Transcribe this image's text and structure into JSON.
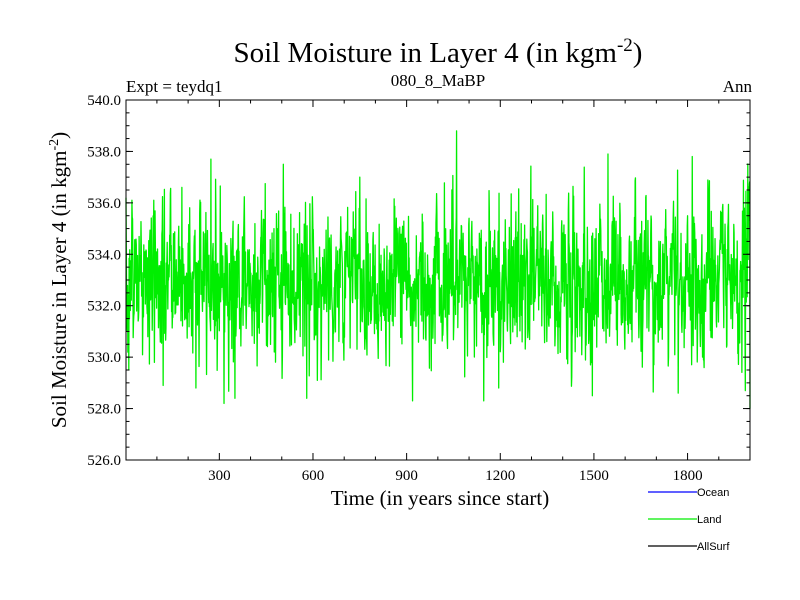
{
  "chart_data": {
    "type": "line",
    "title": "Soil Moisture in Layer 4 (in kgm",
    "title_superscript": "-2",
    "title_suffix": ")",
    "subtitle_left": "Expt = teydq1",
    "subtitle_center": "080_8_MaBP",
    "subtitle_right": "Ann",
    "xlabel": "Time (in years since start)",
    "ylabel": "Soil Moisture in Layer 4 (in kgm",
    "ylabel_superscript": "-2",
    "ylabel_suffix": ")",
    "xlim": [
      1,
      2000
    ],
    "ylim": [
      526.0,
      540.0
    ],
    "xticks": [
      300,
      600,
      900,
      1200,
      1500,
      1800
    ],
    "xtick_labels": [
      "300",
      "600",
      "900",
      "1200",
      "1500",
      "1800"
    ],
    "yticks": [
      526.0,
      528.0,
      530.0,
      532.0,
      534.0,
      536.0,
      538.0,
      540.0
    ],
    "ytick_labels": [
      "526.0",
      "528.0",
      "530.0",
      "532.0",
      "534.0",
      "536.0",
      "538.0",
      "540.0"
    ],
    "grid": false,
    "series": [
      {
        "name": "Land",
        "color": "#00ee00",
        "n_points": 2000,
        "mean": 533.0,
        "std": 1.5,
        "min": 528.0,
        "max": 538.8,
        "anchors": [
          {
            "x": 1,
            "y": 536.2
          },
          {
            "x": 10,
            "y": 529.5
          },
          {
            "x": 20,
            "y": 536.1
          },
          {
            "x": 120,
            "y": 528.9
          },
          {
            "x": 180,
            "y": 536.6
          },
          {
            "x": 225,
            "y": 528.8
          },
          {
            "x": 273,
            "y": 537.7
          },
          {
            "x": 315,
            "y": 528.2
          },
          {
            "x": 350,
            "y": 528.4
          },
          {
            "x": 505,
            "y": 537.5
          },
          {
            "x": 580,
            "y": 528.4
          },
          {
            "x": 750,
            "y": 537.0
          },
          {
            "x": 1060,
            "y": 538.8
          },
          {
            "x": 1195,
            "y": 528.8
          },
          {
            "x": 1495,
            "y": 528.5
          },
          {
            "x": 1545,
            "y": 537.9
          },
          {
            "x": 1770,
            "y": 528.6
          },
          {
            "x": 1815,
            "y": 537.8
          },
          {
            "x": 1985,
            "y": 528.7
          },
          {
            "x": 1990,
            "y": 534.6
          },
          {
            "x": 2000,
            "y": 528.0
          }
        ]
      }
    ]
  },
  "legend": {
    "position": "bottom-right",
    "items": [
      {
        "label": "Ocean",
        "color": "#0000ff"
      },
      {
        "label": "Land",
        "color": "#00ee00"
      },
      {
        "label": "AllSurf",
        "color": "#000000"
      }
    ]
  }
}
